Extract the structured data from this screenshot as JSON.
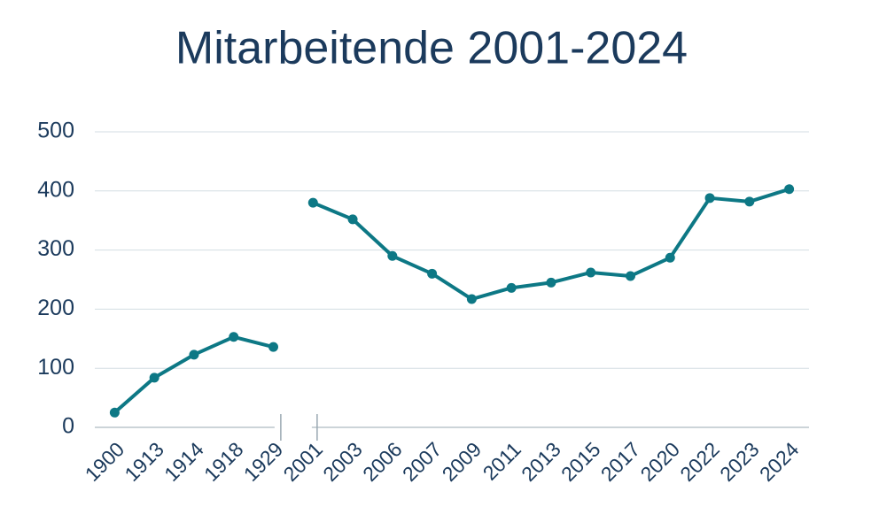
{
  "chart_data": {
    "type": "line",
    "title": "Mitarbeitende 2001-2024",
    "categories": [
      "1900",
      "1913",
      "1914",
      "1918",
      "1929",
      "2001",
      "2003",
      "2006",
      "2007",
      "2009",
      "2011",
      "2013",
      "2015",
      "2017",
      "2020",
      "2022",
      "2023",
      "2024"
    ],
    "series": [
      {
        "color": "#0d7885",
        "values": [
          25,
          84,
          123,
          153,
          136,
          null,
          null,
          null,
          null,
          null,
          null,
          null,
          null,
          null,
          null,
          null,
          null,
          null
        ]
      },
      {
        "color": "#0d7885",
        "values": [
          null,
          null,
          null,
          null,
          null,
          380,
          352,
          290,
          260,
          217,
          236,
          245,
          262,
          256,
          287,
          388,
          382,
          403
        ]
      }
    ],
    "ylim": [
      0,
      500
    ],
    "yticks": [
      0,
      100,
      200,
      300,
      400,
      500
    ],
    "grid": true
  }
}
